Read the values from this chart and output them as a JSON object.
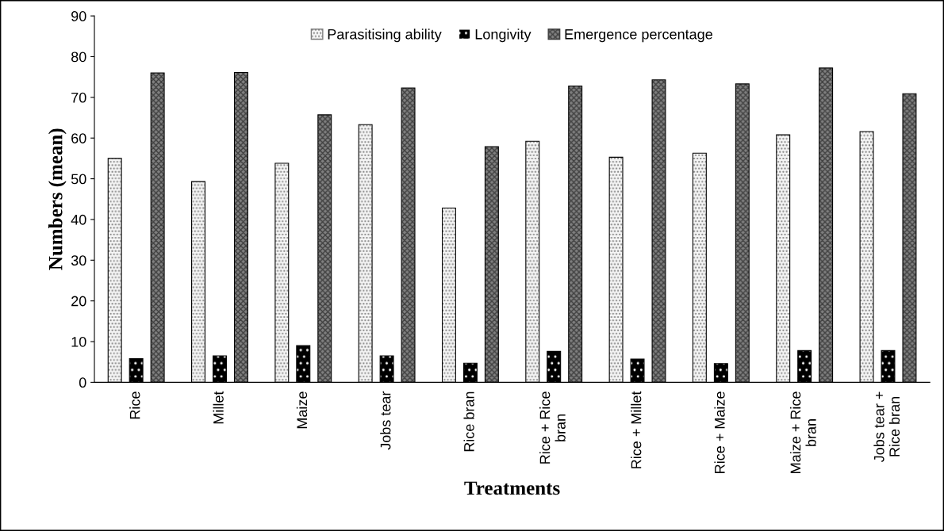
{
  "chart_data": {
    "type": "bar",
    "xlabel": "Treatments",
    "ylabel": "Numbers (mean)",
    "categories": [
      "Rice",
      "Millet",
      "Maize",
      "Jobs tear",
      "Rice bran",
      "Rice + Rice\nbran",
      "Rice + Millet",
      "Rice + Maize",
      "Maize + Rice\nbran",
      "Jobs tear +\nRice bran"
    ],
    "series": [
      {
        "name": "Parasitising ability",
        "color": "#f5f5f5",
        "values": [
          55,
          49.3,
          53.8,
          63.3,
          42.8,
          59.2,
          55.3,
          56.3,
          60.8,
          61.6
        ]
      },
      {
        "name": "Longivity",
        "color": "#000000",
        "values": [
          5.8,
          6.5,
          9,
          6.5,
          4.7,
          7.6,
          5.7,
          4.6,
          7.8,
          7.8
        ]
      },
      {
        "name": "Emergence percentage",
        "color": "#808080",
        "values": [
          76,
          76.1,
          65.7,
          72.3,
          57.9,
          72.8,
          74.3,
          73.3,
          77.2,
          70.9
        ]
      }
    ],
    "ylim": [
      0,
      90
    ],
    "yticks": [
      0,
      10,
      20,
      30,
      40,
      50,
      60,
      70,
      80,
      90
    ],
    "grid": false,
    "legend": "top"
  }
}
